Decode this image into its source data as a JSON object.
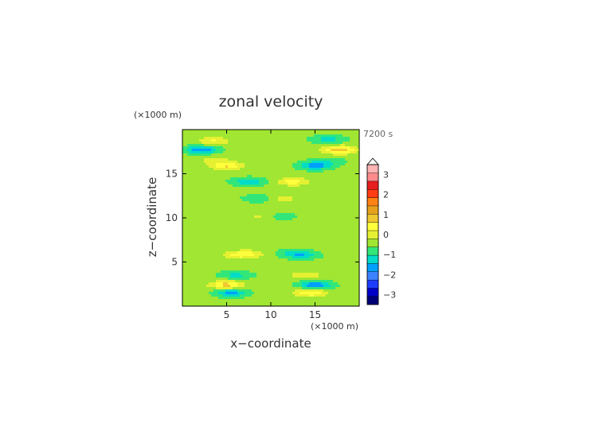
{
  "chart_data": {
    "type": "heatmap",
    "title": "zonal velocity",
    "time_label": "7200 s",
    "xlabel": "x−coordinate",
    "ylabel": "z−coordinate",
    "x_unit": "(×1000 m)",
    "y_unit": "(×1000 m)",
    "xlim": [
      0,
      20
    ],
    "ylim": [
      0,
      20
    ],
    "x_ticks": [
      5,
      10,
      15
    ],
    "y_ticks": [
      5,
      10,
      15
    ],
    "x_tick_labels": [
      "5",
      "10",
      "15"
    ],
    "y_tick_labels": [
      "5",
      "10",
      "15"
    ],
    "colorbar": {
      "ticks": [
        "3",
        "2",
        "1",
        "0",
        "−1",
        "−2",
        "−3"
      ],
      "tick_values": [
        3,
        2,
        1,
        0,
        -1,
        -2,
        -3
      ],
      "range": [
        -3.5,
        3.5
      ],
      "step": 0.5,
      "extend_max": true,
      "colors": [
        "#000078",
        "#0000c8",
        "#1e3cff",
        "#3c82ff",
        "#00a0ff",
        "#00dcc8",
        "#32e67a",
        "#a0e632",
        "#e6f032",
        "#ffff3c",
        "#f0c832",
        "#e6a01e",
        "#ff8214",
        "#ff3c14",
        "#e61e1e",
        "#ff8c8c",
        "#ffb4b4"
      ]
    },
    "features": [
      {
        "x": 3.5,
        "z": 18.7,
        "u": 0.9
      },
      {
        "x": 2.2,
        "z": 17.7,
        "u": -1.6
      },
      {
        "x": 3.5,
        "z": 16.6,
        "u": 0.5
      },
      {
        "x": 5.0,
        "z": 15.9,
        "u": 1.4
      },
      {
        "x": 7.5,
        "z": 14.1,
        "u": -1.1
      },
      {
        "x": 8.7,
        "z": 12.2,
        "u": -0.6
      },
      {
        "x": 9.0,
        "z": 10.2,
        "u": 0.5
      },
      {
        "x": 8.0,
        "z": 6.0,
        "u": 0.4
      },
      {
        "x": 6.5,
        "z": 5.8,
        "u": 1.1
      },
      {
        "x": 6.0,
        "z": 3.5,
        "u": -0.8
      },
      {
        "x": 5.0,
        "z": 2.4,
        "u": 1.6
      },
      {
        "x": 5.5,
        "z": 1.5,
        "u": -1.3
      },
      {
        "x": 16.5,
        "z": 18.9,
        "u": -0.9
      },
      {
        "x": 17.8,
        "z": 17.7,
        "u": 1.8
      },
      {
        "x": 16.5,
        "z": 16.4,
        "u": -0.5
      },
      {
        "x": 15.0,
        "z": 15.9,
        "u": -1.4
      },
      {
        "x": 12.5,
        "z": 14.1,
        "u": 1.1
      },
      {
        "x": 11.3,
        "z": 12.2,
        "u": 0.6
      },
      {
        "x": 11.0,
        "z": 10.2,
        "u": -0.5
      },
      {
        "x": 12.0,
        "z": 6.0,
        "u": -0.4
      },
      {
        "x": 13.5,
        "z": 5.8,
        "u": -1.1
      },
      {
        "x": 14.0,
        "z": 3.5,
        "u": 0.8
      },
      {
        "x": 15.0,
        "z": 2.4,
        "u": -1.6
      },
      {
        "x": 14.5,
        "z": 1.5,
        "u": 1.3
      }
    ]
  }
}
